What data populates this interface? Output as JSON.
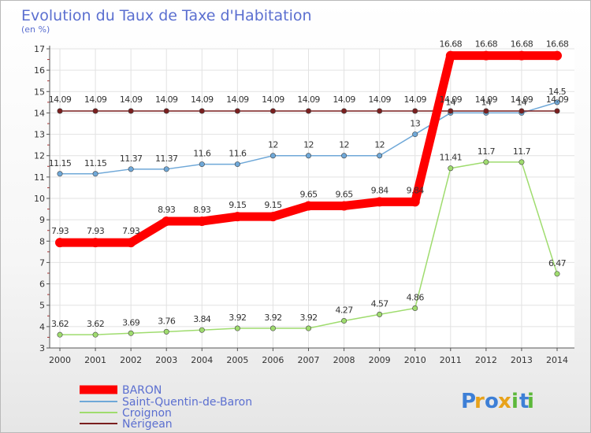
{
  "chart_data": {
    "type": "line",
    "title": "Evolution du Taux de Taxe d'Habitation",
    "ylabel": "(en %)",
    "xlabel": "",
    "ylim": [
      3,
      17
    ],
    "yticks": [
      "3",
      "4",
      "5",
      "6",
      "7",
      "8",
      "9",
      "10",
      "11",
      "12",
      "13",
      "14",
      "15",
      "16",
      "17"
    ],
    "x": [
      "2000",
      "2001",
      "2002",
      "2003",
      "2004",
      "2005",
      "2006",
      "2007",
      "2008",
      "2009",
      "2010",
      "2011",
      "2012",
      "2013",
      "2014"
    ],
    "series": [
      {
        "name": "BARON",
        "color": "#ff0000",
        "values": [
          7.93,
          7.93,
          7.93,
          8.93,
          8.93,
          9.15,
          9.15,
          9.65,
          9.65,
          9.84,
          9.84,
          16.68,
          16.68,
          16.68,
          16.68
        ],
        "labels": [
          "7.93",
          "7.93",
          "7.93",
          "8.93",
          "8.93",
          "9.15",
          "9.15",
          "9.65",
          "9.65",
          "9.84",
          "9.84",
          "16.68",
          "16.68",
          "16.68",
          "16.68"
        ]
      },
      {
        "name": "Saint-Quentin-de-Baron",
        "color": "#6fa8d8",
        "values": [
          11.15,
          11.15,
          11.37,
          11.37,
          11.6,
          11.6,
          12,
          12,
          12,
          12,
          13,
          14,
          14,
          14,
          14.5
        ],
        "labels": [
          "11.15",
          "11.15",
          "11.37",
          "11.37",
          "11.6",
          "11.6",
          "12",
          "12",
          "12",
          "12",
          "13",
          "14",
          "14",
          "14",
          "14.5"
        ]
      },
      {
        "name": "Croignon",
        "color": "#9fdc6e",
        "values": [
          3.62,
          3.62,
          3.69,
          3.76,
          3.84,
          3.92,
          3.92,
          3.92,
          4.27,
          4.57,
          4.86,
          11.41,
          11.7,
          11.7,
          6.47
        ],
        "labels": [
          "3.62",
          "3.62",
          "3.69",
          "3.76",
          "3.84",
          "3.92",
          "3.92",
          "3.92",
          "4.27",
          "4.57",
          "4.86",
          "11.41",
          "11.7",
          "11.7",
          "6.47"
        ]
      },
      {
        "name": "Nérigean",
        "color": "#7a1f1f",
        "values": [
          14.09,
          14.09,
          14.09,
          14.09,
          14.09,
          14.09,
          14.09,
          14.09,
          14.09,
          14.09,
          14.09,
          14.09,
          14.09,
          14.09,
          14.09
        ],
        "labels": [
          "14.09",
          "14.09",
          "14.09",
          "14.09",
          "14.09",
          "14.09",
          "14.09",
          "14.09",
          "14.09",
          "14.09",
          "14.09",
          "14.09",
          "14.09",
          "14.09",
          "14.09"
        ]
      }
    ],
    "legend": {
      "placement": "bottom-left"
    }
  },
  "brand": {
    "letters": [
      "P",
      "r",
      "o",
      "x",
      "i",
      "t",
      "i"
    ],
    "colors": [
      "#3d7fd6",
      "#e8a21a",
      "#3d7fd6",
      "#e8a21a",
      "#5cb83a",
      "#3d7fd6",
      "#5cb83a"
    ]
  }
}
